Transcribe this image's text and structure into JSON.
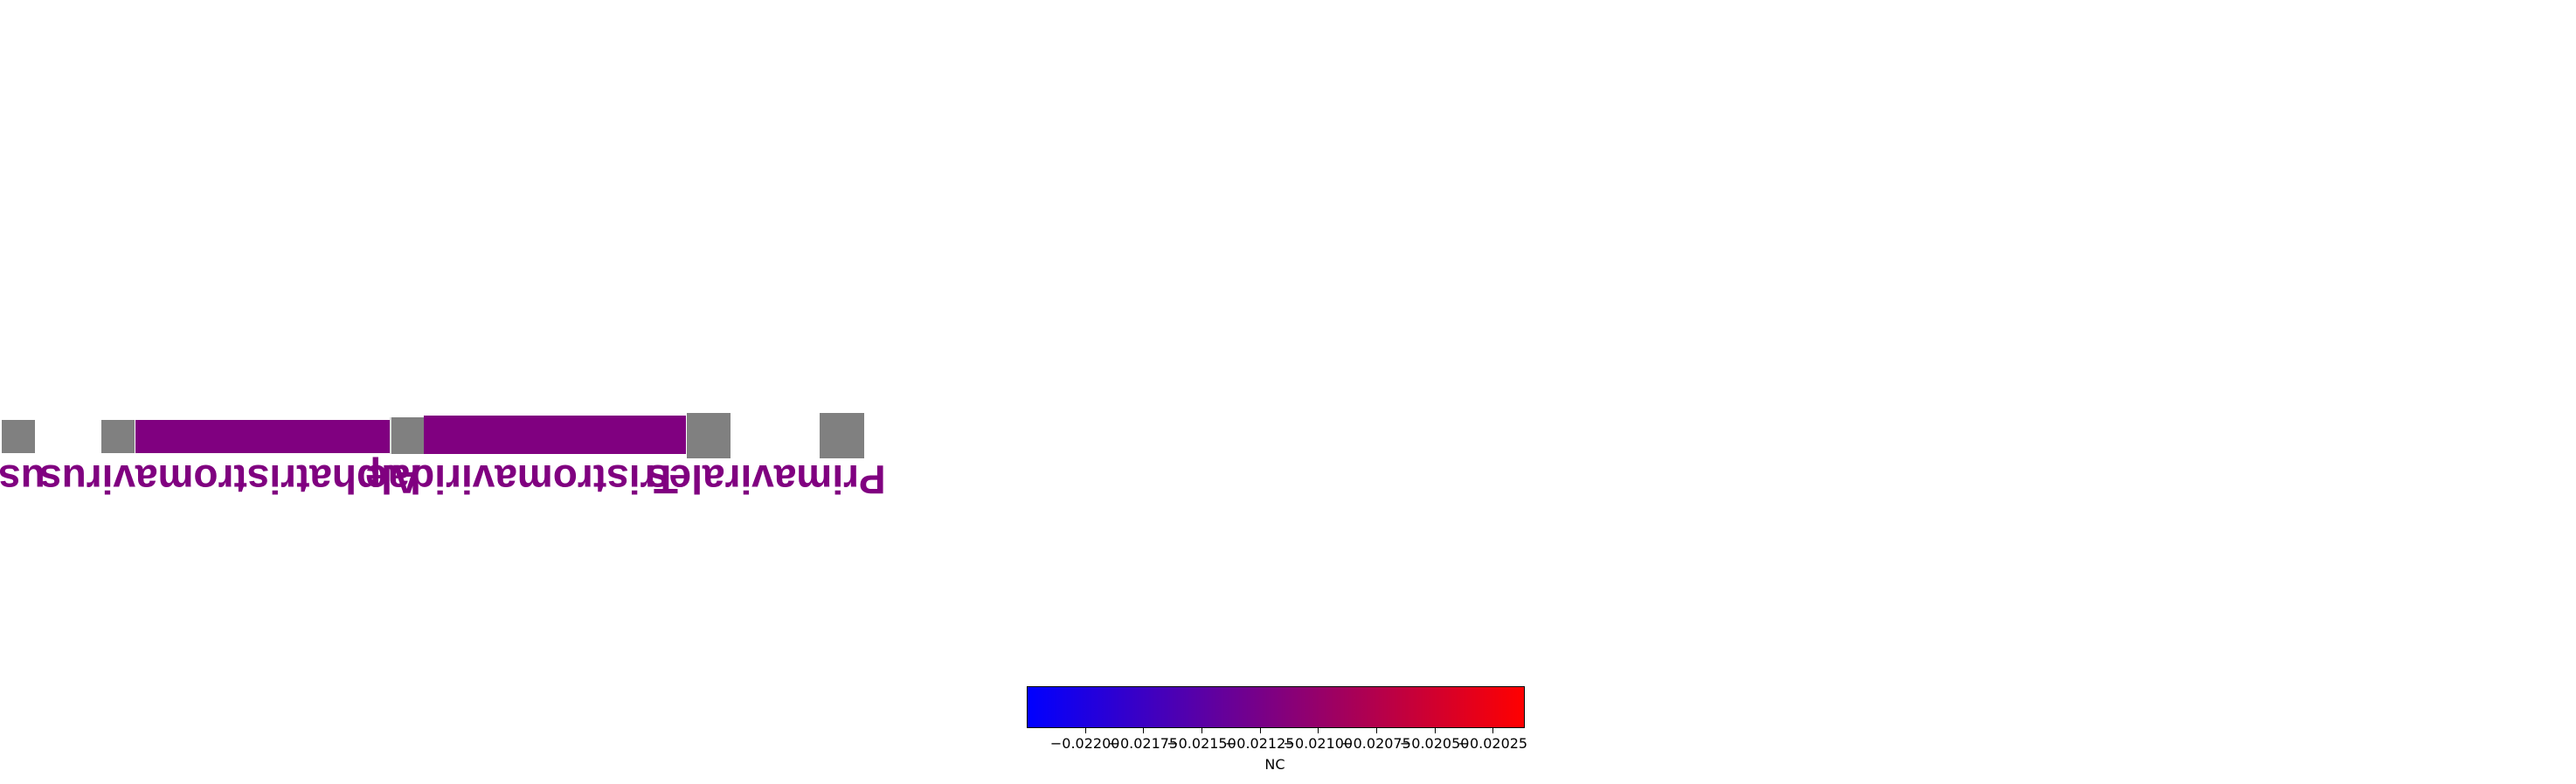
{
  "chart_data": {
    "type": "heatmap",
    "title": "",
    "taxa": [
      {
        "name": "Alphatristromavirus",
        "label": "Alphatristromavirus",
        "color": "#800080"
      },
      {
        "name": "Tristromaviridae",
        "label": "Tristromaviridae",
        "color": "#800080"
      },
      {
        "name": "Primavirales",
        "label": "Primavirales",
        "color": "#800080"
      }
    ],
    "partial_label": "us",
    "missing_color": "#808080",
    "colorbar": {
      "label": "NC",
      "cmap": [
        "#0000ff",
        "#800080",
        "#ff0000"
      ],
      "ticks": [
        "−0.02200",
        "−0.02175",
        "−0.02150",
        "−0.02125",
        "−0.02100",
        "−0.02075",
        "−0.02050",
        "−0.02025"
      ],
      "range": [
        -0.02225,
        -0.02012
      ]
    }
  }
}
